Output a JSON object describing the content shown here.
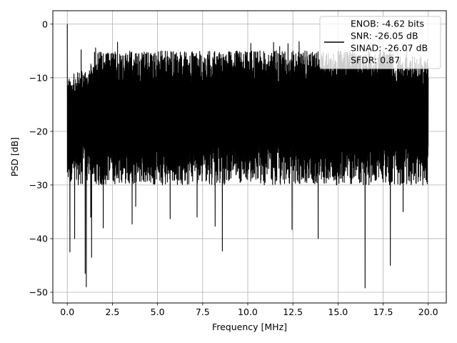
{
  "chart_data": {
    "type": "line",
    "title": "",
    "xlabel": "Frequency [MHz]",
    "ylabel": "PSD [dB]",
    "xlim": [
      -0.8,
      21.0
    ],
    "ylim": [
      -52,
      2.5
    ],
    "xticks": [
      0.0,
      2.5,
      5.0,
      7.5,
      10.0,
      12.5,
      15.0,
      17.5,
      20.0
    ],
    "xtick_labels": [
      "0.0",
      "2.5",
      "5.0",
      "7.5",
      "10.0",
      "12.5",
      "15.0",
      "17.5",
      "20.0"
    ],
    "yticks": [
      0,
      -10,
      -20,
      -30,
      -40,
      -50
    ],
    "ytick_labels": [
      "0",
      "−10",
      "−20",
      "−30",
      "−40",
      "−50"
    ],
    "grid": true,
    "legend_position": "top-right",
    "series": [
      {
        "name": "",
        "color": "#000000",
        "summary": {
          "x_range": [
            0.0,
            20.0
          ],
          "peak": [
            0.0,
            0.0
          ],
          "typical_upper_envelope_db": -8,
          "typical_lower_envelope_db": -26
        },
        "notable_dips": [
          [
            0.15,
            -42.5
          ],
          [
            0.4,
            -40
          ],
          [
            1.0,
            -46.5
          ],
          [
            1.05,
            -49
          ],
          [
            1.3,
            -36
          ],
          [
            1.35,
            -43.5
          ],
          [
            2.0,
            -38
          ],
          [
            3.6,
            -37.3
          ],
          [
            3.8,
            -34
          ],
          [
            4.8,
            -29
          ],
          [
            5.7,
            -36.3
          ],
          [
            7.2,
            -36
          ],
          [
            8.2,
            -37.7
          ],
          [
            8.6,
            -42.3
          ],
          [
            12.45,
            -38.3
          ],
          [
            13.9,
            -40
          ],
          [
            16.5,
            -49.2
          ],
          [
            17.9,
            -45
          ],
          [
            18.6,
            -35
          ],
          [
            19.7,
            -30
          ]
        ]
      }
    ],
    "legend": {
      "lines": [
        "ENOB: -4.62 bits",
        "SNR: -26.05 dB",
        "SINAD: -26.07 dB",
        "SFDR: 0.87"
      ]
    }
  },
  "colors": {
    "line": "#000000",
    "grid": "#b0b0b0",
    "axes": "#000000",
    "legend_bg": "#ffffff",
    "legend_border": "#cccccc"
  }
}
